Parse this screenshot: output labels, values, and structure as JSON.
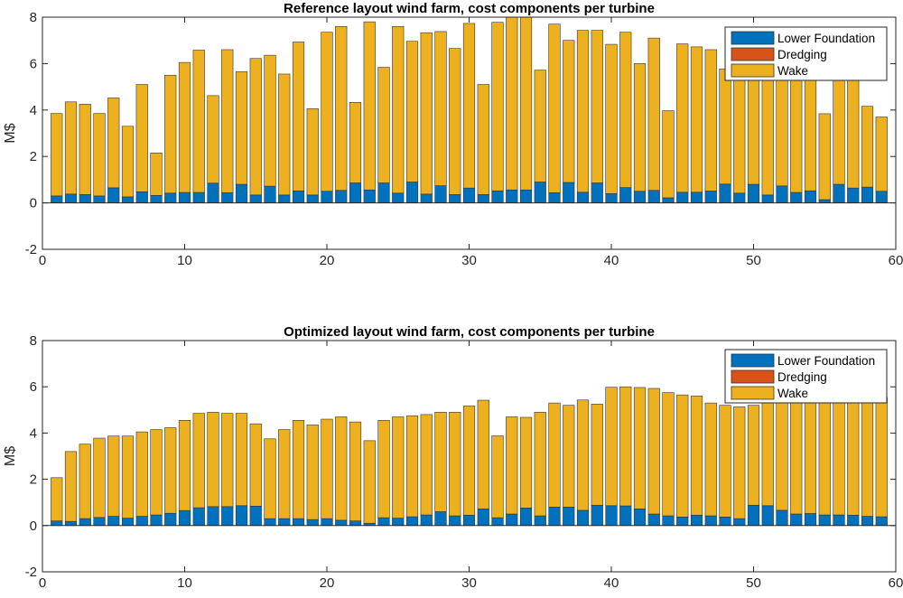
{
  "legend_labels": [
    "Lower Foundation",
    "Dredging",
    "Wake"
  ],
  "colors": {
    "Lower Foundation": "#0072bd",
    "Dredging": "#d95319",
    "Wake": "#edb120"
  },
  "chart_data": [
    {
      "type": "bar",
      "stacked": true,
      "title": "Reference layout wind farm, cost components per turbine",
      "xlabel": "",
      "ylabel": "M$",
      "xlim": [
        0,
        60
      ],
      "ylim": [
        -2,
        8
      ],
      "xticks": [
        0,
        10,
        20,
        30,
        40,
        50,
        60
      ],
      "yticks": [
        -2,
        0,
        2,
        4,
        6,
        8
      ],
      "legend_position": "top-right",
      "grid": false,
      "x": [
        1,
        2,
        3,
        4,
        5,
        6,
        7,
        8,
        9,
        10,
        11,
        12,
        13,
        14,
        15,
        16,
        17,
        18,
        19,
        20,
        21,
        22,
        23,
        24,
        25,
        26,
        27,
        28,
        29,
        30,
        31,
        32,
        33,
        34,
        35,
        36,
        37,
        38,
        39,
        40,
        41,
        42,
        43,
        44,
        45,
        46,
        47,
        48,
        49,
        50,
        51,
        52,
        53,
        54,
        55,
        56,
        57,
        58,
        59
      ],
      "series": [
        {
          "name": "Lower Foundation",
          "values": [
            0.3,
            0.38,
            0.36,
            0.3,
            0.65,
            0.26,
            0.48,
            0.32,
            0.42,
            0.45,
            0.45,
            0.85,
            0.44,
            0.8,
            0.34,
            0.72,
            0.34,
            0.52,
            0.34,
            0.5,
            0.54,
            0.86,
            0.56,
            0.86,
            0.42,
            0.9,
            0.38,
            0.74,
            0.36,
            0.64,
            0.36,
            0.52,
            0.56,
            0.56,
            0.9,
            0.44,
            0.88,
            0.46,
            0.86,
            0.4,
            0.66,
            0.5,
            0.54,
            0.22,
            0.46,
            0.46,
            0.51,
            0.81,
            0.42,
            0.8,
            0.34,
            0.73,
            0.45,
            0.52,
            0.14,
            0.8,
            0.64,
            0.68,
            0.5
          ]
        },
        {
          "name": "Dredging",
          "values": [
            0,
            0,
            0,
            0,
            0,
            0,
            0,
            0,
            0,
            0,
            0,
            0,
            0,
            0,
            0,
            0,
            0,
            0,
            0,
            0,
            0,
            0,
            0,
            0,
            0,
            0,
            0,
            0,
            0,
            0,
            0,
            0,
            0,
            0,
            0,
            0,
            0,
            0,
            0,
            0,
            0,
            0,
            0,
            0,
            0,
            0,
            0,
            0,
            0,
            0,
            0,
            0,
            0,
            0,
            0,
            0,
            0,
            0,
            0
          ]
        },
        {
          "name": "Wake",
          "values": [
            3.55,
            3.97,
            3.89,
            3.55,
            3.87,
            3.04,
            4.62,
            1.83,
            5.08,
            5.6,
            6.13,
            3.77,
            6.16,
            4.85,
            5.88,
            5.64,
            5.21,
            6.41,
            3.72,
            6.85,
            7.06,
            3.47,
            7.24,
            4.98,
            7.18,
            6.06,
            6.95,
            6.64,
            6.29,
            7.09,
            4.74,
            7.26,
            7.44,
            7.44,
            4.82,
            7.26,
            6.12,
            6.97,
            6.57,
            6.43,
            6.69,
            5.5,
            6.56,
            3.75,
            6.39,
            6.26,
            6.09,
            4.96,
            5.88,
            5.8,
            6.16,
            5.67,
            5.65,
            4.98,
            3.7,
            5.7,
            5.76,
            3.48,
            3.2
          ]
        }
      ]
    },
    {
      "type": "bar",
      "stacked": true,
      "title": "Optimized layout wind farm, cost components per turbine",
      "xlabel": "",
      "ylabel": "M$",
      "xlim": [
        0,
        60
      ],
      "ylim": [
        -2,
        8
      ],
      "xticks": [
        0,
        10,
        20,
        30,
        40,
        50,
        60
      ],
      "yticks": [
        -2,
        0,
        2,
        4,
        6,
        8
      ],
      "legend_position": "top-right",
      "grid": false,
      "x": [
        1,
        2,
        3,
        4,
        5,
        6,
        7,
        8,
        9,
        10,
        11,
        12,
        13,
        14,
        15,
        16,
        17,
        18,
        19,
        20,
        21,
        22,
        23,
        24,
        25,
        26,
        27,
        28,
        29,
        30,
        31,
        32,
        33,
        34,
        35,
        36,
        37,
        38,
        39,
        40,
        41,
        42,
        43,
        44,
        45,
        46,
        47,
        48,
        49,
        50,
        51,
        52,
        53,
        54,
        55,
        56,
        57,
        58,
        59
      ],
      "series": [
        {
          "name": "Lower Foundation",
          "values": [
            0.2,
            0.18,
            0.3,
            0.35,
            0.4,
            0.32,
            0.4,
            0.46,
            0.53,
            0.65,
            0.77,
            0.82,
            0.82,
            0.86,
            0.84,
            0.3,
            0.3,
            0.3,
            0.26,
            0.3,
            0.23,
            0.2,
            0.1,
            0.34,
            0.32,
            0.38,
            0.46,
            0.6,
            0.42,
            0.45,
            0.72,
            0.34,
            0.5,
            0.76,
            0.42,
            0.8,
            0.8,
            0.66,
            0.88,
            0.86,
            0.85,
            0.72,
            0.5,
            0.42,
            0.37,
            0.45,
            0.42,
            0.37,
            0.3,
            0.88,
            0.86,
            0.66,
            0.5,
            0.52,
            0.46,
            0.46,
            0.45,
            0.4,
            0.38
          ]
        },
        {
          "name": "Dredging",
          "values": [
            0,
            0,
            0,
            0,
            0,
            0,
            0,
            0,
            0,
            0,
            0,
            0,
            0,
            0,
            0,
            0,
            0,
            0,
            0,
            0,
            0,
            0,
            0,
            0,
            0,
            0,
            0,
            0,
            0,
            0,
            0,
            0,
            0,
            0,
            0,
            0,
            0,
            0,
            0,
            0,
            0,
            0,
            0,
            0,
            0,
            0,
            0,
            0,
            0,
            0,
            0,
            0,
            0,
            0,
            0,
            0,
            0,
            0,
            0
          ]
        },
        {
          "name": "Wake",
          "values": [
            1.87,
            3.02,
            3.22,
            3.43,
            3.47,
            3.55,
            3.65,
            3.69,
            3.7,
            3.9,
            4.08,
            4.08,
            4.03,
            3.99,
            3.56,
            3.45,
            3.85,
            4.25,
            4.09,
            4.3,
            4.47,
            4.28,
            3.57,
            4.21,
            4.38,
            4.37,
            4.34,
            4.3,
            4.48,
            4.72,
            4.7,
            3.54,
            4.2,
            3.92,
            4.48,
            4.5,
            4.4,
            4.77,
            4.37,
            5.12,
            5.15,
            5.25,
            5.43,
            5.33,
            5.28,
            5.15,
            4.88,
            4.83,
            4.83,
            4.32,
            4.54,
            4.79,
            5.0,
            5.03,
            5.09,
            5.14,
            5.15,
            5.15,
            5.17
          ]
        }
      ]
    }
  ]
}
